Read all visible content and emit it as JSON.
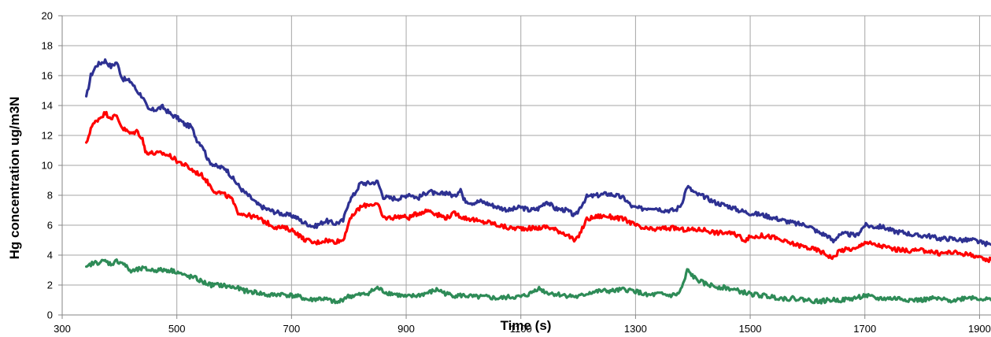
{
  "chart_data": {
    "type": "line",
    "title": "",
    "xlabel": "Time (s)",
    "ylabel": "Hg concentration ug/m3N",
    "xlim": [
      300,
      1920
    ],
    "ylim": [
      0,
      20
    ],
    "x_ticks": [
      300,
      500,
      700,
      900,
      1100,
      1300,
      1500,
      1700,
      1900
    ],
    "y_ticks": [
      0,
      2,
      4,
      6,
      8,
      10,
      12,
      14,
      16,
      18,
      20
    ],
    "grid": true,
    "legend": "none",
    "series": [
      {
        "color": "#2e3192",
        "points": [
          [
            342,
            14.5
          ],
          [
            350,
            16.0
          ],
          [
            360,
            16.7
          ],
          [
            375,
            17.0
          ],
          [
            385,
            16.6
          ],
          [
            395,
            16.9
          ],
          [
            405,
            15.8
          ],
          [
            420,
            15.6
          ],
          [
            430,
            15.0
          ],
          [
            440,
            14.6
          ],
          [
            450,
            13.7
          ],
          [
            460,
            13.7
          ],
          [
            475,
            13.9
          ],
          [
            490,
            13.4
          ],
          [
            500,
            13.2
          ],
          [
            515,
            12.7
          ],
          [
            525,
            12.6
          ],
          [
            535,
            11.7
          ],
          [
            545,
            11.3
          ],
          [
            555,
            10.3
          ],
          [
            570,
            9.9
          ],
          [
            585,
            9.8
          ],
          [
            600,
            9.0
          ],
          [
            615,
            8.3
          ],
          [
            630,
            7.8
          ],
          [
            640,
            7.4
          ],
          [
            655,
            7.1
          ],
          [
            670,
            6.9
          ],
          [
            690,
            6.7
          ],
          [
            705,
            6.6
          ],
          [
            720,
            6.2
          ],
          [
            740,
            5.9
          ],
          [
            760,
            6.3
          ],
          [
            775,
            6.1
          ],
          [
            790,
            6.3
          ],
          [
            800,
            7.6
          ],
          [
            810,
            8.1
          ],
          [
            820,
            8.8
          ],
          [
            835,
            8.8
          ],
          [
            850,
            8.9
          ],
          [
            860,
            7.9
          ],
          [
            875,
            7.8
          ],
          [
            890,
            7.8
          ],
          [
            905,
            8.1
          ],
          [
            920,
            7.8
          ],
          [
            940,
            8.3
          ],
          [
            955,
            8.0
          ],
          [
            970,
            8.2
          ],
          [
            985,
            7.9
          ],
          [
            995,
            8.5
          ],
          [
            1000,
            7.7
          ],
          [
            1015,
            7.5
          ],
          [
            1030,
            7.6
          ],
          [
            1045,
            7.4
          ],
          [
            1060,
            7.2
          ],
          [
            1080,
            7.0
          ],
          [
            1100,
            7.2
          ],
          [
            1115,
            7.0
          ],
          [
            1130,
            7.1
          ],
          [
            1145,
            7.6
          ],
          [
            1160,
            7.1
          ],
          [
            1180,
            7.0
          ],
          [
            1195,
            6.6
          ],
          [
            1205,
            7.3
          ],
          [
            1215,
            7.9
          ],
          [
            1235,
            8.0
          ],
          [
            1250,
            8.1
          ],
          [
            1265,
            8.0
          ],
          [
            1280,
            7.8
          ],
          [
            1295,
            7.2
          ],
          [
            1310,
            7.1
          ],
          [
            1330,
            7.2
          ],
          [
            1350,
            7.0
          ],
          [
            1370,
            7.0
          ],
          [
            1380,
            7.4
          ],
          [
            1390,
            8.6
          ],
          [
            1405,
            8.1
          ],
          [
            1420,
            7.9
          ],
          [
            1440,
            7.5
          ],
          [
            1460,
            7.3
          ],
          [
            1480,
            7.0
          ],
          [
            1500,
            6.8
          ],
          [
            1520,
            6.7
          ],
          [
            1540,
            6.5
          ],
          [
            1560,
            6.3
          ],
          [
            1580,
            6.1
          ],
          [
            1600,
            6.0
          ],
          [
            1620,
            5.5
          ],
          [
            1635,
            5.3
          ],
          [
            1645,
            4.9
          ],
          [
            1655,
            5.4
          ],
          [
            1670,
            5.4
          ],
          [
            1685,
            5.3
          ],
          [
            1700,
            6.0
          ],
          [
            1715,
            5.9
          ],
          [
            1730,
            5.9
          ],
          [
            1750,
            5.6
          ],
          [
            1770,
            5.5
          ],
          [
            1790,
            5.3
          ],
          [
            1810,
            5.3
          ],
          [
            1830,
            5.1
          ],
          [
            1850,
            5.1
          ],
          [
            1870,
            5.0
          ],
          [
            1890,
            5.0
          ],
          [
            1905,
            4.8
          ],
          [
            1920,
            4.7
          ]
        ]
      },
      {
        "color": "#ff0000",
        "points": [
          [
            342,
            11.4
          ],
          [
            350,
            12.5
          ],
          [
            360,
            13.0
          ],
          [
            375,
            13.5
          ],
          [
            385,
            13.2
          ],
          [
            395,
            13.3
          ],
          [
            405,
            12.5
          ],
          [
            420,
            12.1
          ],
          [
            430,
            12.3
          ],
          [
            440,
            11.8
          ],
          [
            445,
            10.9
          ],
          [
            460,
            10.8
          ],
          [
            475,
            10.8
          ],
          [
            490,
            10.6
          ],
          [
            500,
            10.3
          ],
          [
            515,
            10.0
          ],
          [
            530,
            9.6
          ],
          [
            545,
            9.3
          ],
          [
            555,
            8.8
          ],
          [
            565,
            8.3
          ],
          [
            580,
            8.1
          ],
          [
            595,
            7.8
          ],
          [
            605,
            6.9
          ],
          [
            620,
            6.7
          ],
          [
            640,
            6.5
          ],
          [
            655,
            6.2
          ],
          [
            670,
            5.9
          ],
          [
            690,
            5.8
          ],
          [
            705,
            5.6
          ],
          [
            720,
            5.1
          ],
          [
            740,
            4.8
          ],
          [
            760,
            5.0
          ],
          [
            775,
            4.9
          ],
          [
            790,
            5.0
          ],
          [
            800,
            6.2
          ],
          [
            810,
            6.8
          ],
          [
            820,
            7.2
          ],
          [
            835,
            7.4
          ],
          [
            850,
            7.4
          ],
          [
            860,
            6.5
          ],
          [
            875,
            6.5
          ],
          [
            890,
            6.6
          ],
          [
            905,
            6.5
          ],
          [
            920,
            6.8
          ],
          [
            940,
            7.0
          ],
          [
            955,
            6.7
          ],
          [
            970,
            6.5
          ],
          [
            985,
            6.8
          ],
          [
            1000,
            6.5
          ],
          [
            1015,
            6.4
          ],
          [
            1030,
            6.2
          ],
          [
            1045,
            6.2
          ],
          [
            1060,
            6.0
          ],
          [
            1080,
            5.8
          ],
          [
            1100,
            5.8
          ],
          [
            1115,
            5.8
          ],
          [
            1130,
            5.8
          ],
          [
            1145,
            5.9
          ],
          [
            1160,
            5.7
          ],
          [
            1180,
            5.4
          ],
          [
            1195,
            4.9
          ],
          [
            1205,
            5.6
          ],
          [
            1215,
            6.4
          ],
          [
            1235,
            6.6
          ],
          [
            1250,
            6.6
          ],
          [
            1265,
            6.5
          ],
          [
            1280,
            6.4
          ],
          [
            1295,
            6.1
          ],
          [
            1310,
            5.8
          ],
          [
            1330,
            5.7
          ],
          [
            1350,
            5.8
          ],
          [
            1370,
            5.8
          ],
          [
            1380,
            5.7
          ],
          [
            1390,
            5.7
          ],
          [
            1405,
            5.7
          ],
          [
            1420,
            5.7
          ],
          [
            1440,
            5.5
          ],
          [
            1460,
            5.5
          ],
          [
            1480,
            5.3
          ],
          [
            1490,
            5.0
          ],
          [
            1500,
            5.2
          ],
          [
            1520,
            5.3
          ],
          [
            1540,
            5.2
          ],
          [
            1560,
            4.9
          ],
          [
            1580,
            4.7
          ],
          [
            1600,
            4.5
          ],
          [
            1620,
            4.3
          ],
          [
            1635,
            4.0
          ],
          [
            1645,
            3.8
          ],
          [
            1655,
            4.3
          ],
          [
            1670,
            4.4
          ],
          [
            1685,
            4.4
          ],
          [
            1700,
            4.9
          ],
          [
            1715,
            4.7
          ],
          [
            1730,
            4.6
          ],
          [
            1750,
            4.4
          ],
          [
            1770,
            4.3
          ],
          [
            1790,
            4.3
          ],
          [
            1810,
            4.3
          ],
          [
            1830,
            4.1
          ],
          [
            1850,
            4.2
          ],
          [
            1870,
            4.1
          ],
          [
            1890,
            4.0
          ],
          [
            1905,
            3.7
          ],
          [
            1920,
            3.7
          ]
        ]
      },
      {
        "color": "#2e8b57",
        "points": [
          [
            342,
            3.1
          ],
          [
            350,
            3.4
          ],
          [
            360,
            3.5
          ],
          [
            375,
            3.6
          ],
          [
            385,
            3.4
          ],
          [
            395,
            3.6
          ],
          [
            405,
            3.5
          ],
          [
            420,
            2.9
          ],
          [
            430,
            3.0
          ],
          [
            440,
            3.1
          ],
          [
            455,
            3.0
          ],
          [
            470,
            3.0
          ],
          [
            485,
            3.0
          ],
          [
            500,
            2.9
          ],
          [
            515,
            2.6
          ],
          [
            530,
            2.5
          ],
          [
            545,
            2.2
          ],
          [
            560,
            2.0
          ],
          [
            575,
            2.0
          ],
          [
            590,
            1.9
          ],
          [
            605,
            1.8
          ],
          [
            620,
            1.6
          ],
          [
            640,
            1.5
          ],
          [
            660,
            1.3
          ],
          [
            680,
            1.4
          ],
          [
            700,
            1.3
          ],
          [
            715,
            1.2
          ],
          [
            730,
            1.0
          ],
          [
            750,
            1.1
          ],
          [
            765,
            1.0
          ],
          [
            780,
            0.8
          ],
          [
            795,
            1.2
          ],
          [
            810,
            1.3
          ],
          [
            830,
            1.4
          ],
          [
            850,
            1.8
          ],
          [
            865,
            1.5
          ],
          [
            880,
            1.4
          ],
          [
            900,
            1.2
          ],
          [
            920,
            1.3
          ],
          [
            940,
            1.5
          ],
          [
            955,
            1.7
          ],
          [
            970,
            1.4
          ],
          [
            985,
            1.3
          ],
          [
            1000,
            1.3
          ],
          [
            1020,
            1.2
          ],
          [
            1040,
            1.2
          ],
          [
            1060,
            1.1
          ],
          [
            1080,
            1.2
          ],
          [
            1100,
            1.2
          ],
          [
            1115,
            1.4
          ],
          [
            1130,
            1.8
          ],
          [
            1145,
            1.5
          ],
          [
            1160,
            1.4
          ],
          [
            1180,
            1.3
          ],
          [
            1200,
            1.2
          ],
          [
            1220,
            1.5
          ],
          [
            1240,
            1.6
          ],
          [
            1260,
            1.6
          ],
          [
            1280,
            1.7
          ],
          [
            1300,
            1.6
          ],
          [
            1320,
            1.3
          ],
          [
            1340,
            1.4
          ],
          [
            1360,
            1.3
          ],
          [
            1375,
            1.4
          ],
          [
            1385,
            2.2
          ],
          [
            1390,
            3.0
          ],
          [
            1405,
            2.4
          ],
          [
            1420,
            2.1
          ],
          [
            1440,
            1.9
          ],
          [
            1460,
            1.8
          ],
          [
            1480,
            1.6
          ],
          [
            1500,
            1.4
          ],
          [
            1520,
            1.3
          ],
          [
            1540,
            1.2
          ],
          [
            1560,
            1.1
          ],
          [
            1580,
            1.1
          ],
          [
            1600,
            1.0
          ],
          [
            1620,
            0.9
          ],
          [
            1640,
            1.0
          ],
          [
            1660,
            1.0
          ],
          [
            1680,
            1.1
          ],
          [
            1700,
            1.3
          ],
          [
            1720,
            1.1
          ],
          [
            1740,
            1.1
          ],
          [
            1760,
            1.1
          ],
          [
            1780,
            1.0
          ],
          [
            1800,
            1.0
          ],
          [
            1820,
            1.1
          ],
          [
            1840,
            1.0
          ],
          [
            1860,
            1.0
          ],
          [
            1880,
            1.2
          ],
          [
            1900,
            1.1
          ],
          [
            1920,
            1.0
          ]
        ]
      }
    ]
  }
}
